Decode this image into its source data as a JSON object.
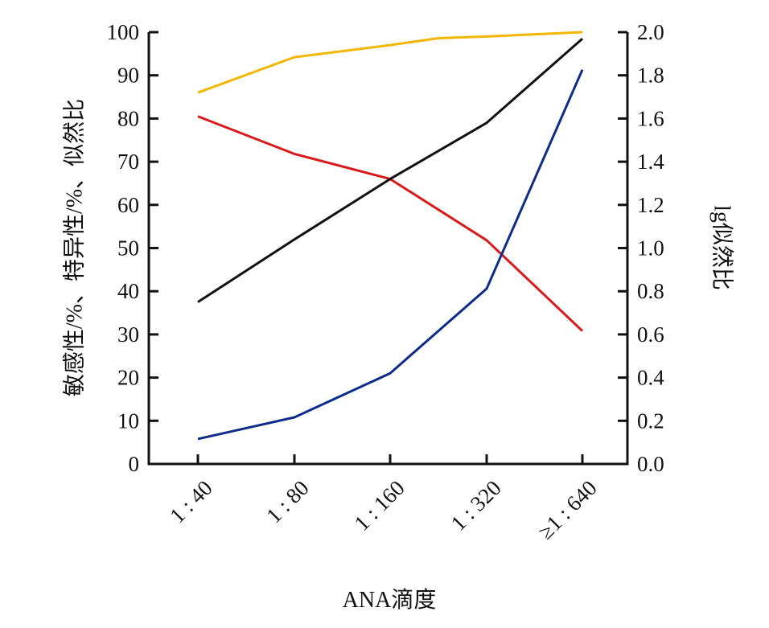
{
  "chart_data": {
    "type": "line",
    "title": "",
    "xlabel": "ANA滴度",
    "ylabel_left": "敏感性/%、特异性/%、似然比",
    "ylabel_right": "lg似然比",
    "ylim_left": [
      0,
      100
    ],
    "ylim_right": [
      0,
      2.0
    ],
    "yticks_left": [
      0,
      10,
      20,
      30,
      40,
      50,
      60,
      70,
      80,
      90,
      100
    ],
    "yticks_right": [
      "0.0",
      "0.2",
      "0.4",
      "0.6",
      "0.8",
      "1.0",
      "1.2",
      "1.4",
      "1.6",
      "1.8",
      "2.0"
    ],
    "categories": [
      "1 : 40",
      "1 : 80",
      "1 : 160",
      "1 : 320",
      "≥1 : 640"
    ],
    "grid": false,
    "legend": "none",
    "series": [
      {
        "color": "#f2b705",
        "axis": "left",
        "x": [
          0,
          1,
          2,
          2.5,
          3,
          4
        ],
        "values": [
          86,
          94.2,
          97,
          98.6,
          99,
          100
        ]
      },
      {
        "color": "#d91a1a",
        "axis": "left",
        "x": [
          0,
          1,
          2,
          3,
          4
        ],
        "values": [
          80.5,
          71.8,
          66,
          51.8,
          30.8
        ]
      },
      {
        "color": "#111111",
        "axis": "right",
        "x": [
          0,
          1,
          2,
          3,
          4
        ],
        "values": [
          0.75,
          1.04,
          1.32,
          1.58,
          1.97
        ]
      },
      {
        "color": "#0d2c8a",
        "axis": "left",
        "x": [
          0,
          1,
          2,
          3,
          4
        ],
        "values": [
          5.8,
          10.8,
          21,
          40.6,
          91.3
        ]
      }
    ]
  }
}
